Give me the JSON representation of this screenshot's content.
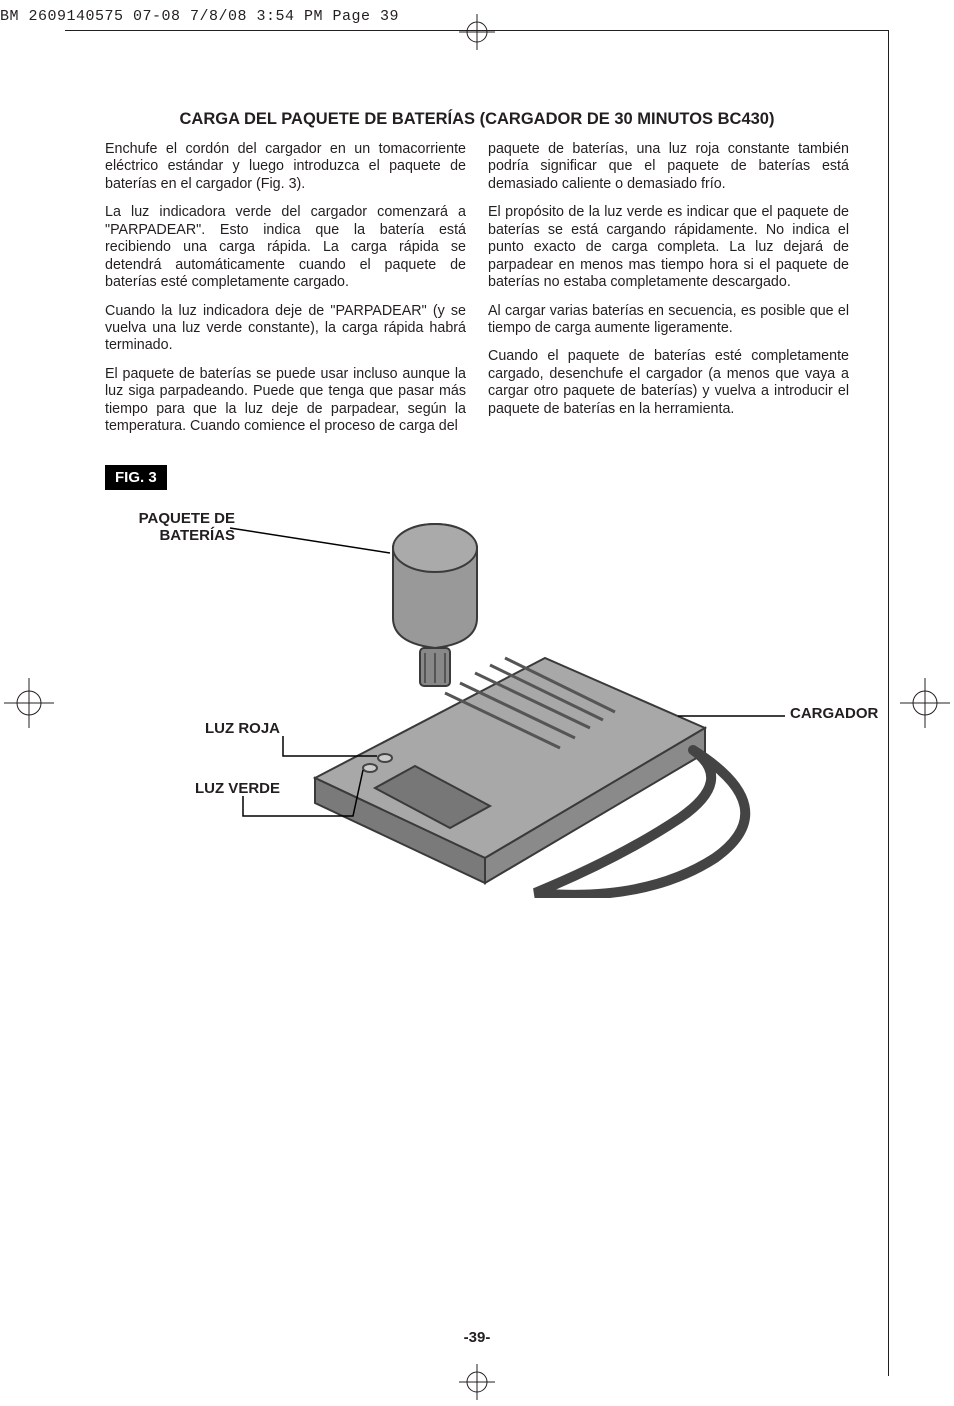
{
  "slug": "BM 2609140575 07-08  7/8/08  3:54 PM  Page 39",
  "title": "CARGA DEL PAQUETE DE BATERÍAS (CARGADOR DE 30 MINUTOS BC430)",
  "left_col": {
    "p1": "Enchufe el cordón del cargador en un tomacorriente eléctrico estándar y luego introduzca el paquete de baterías en el cargador (Fig. 3).",
    "p2": "La luz indicadora verde del cargador comenzará a \"PARPADEAR\".  Esto indica que la batería está recibiendo una carga rápida.  La carga rápida se detendrá automáticamente cuando el paquete de baterías esté completamente cargado.",
    "p3": "Cuando la luz indicadora deje de \"PARPADEAR\" (y se vuelva una luz verde constante), la carga rápida habrá terminado.",
    "p4": "El paquete de baterías se puede usar incluso aunque la luz siga parpadeando.  Puede que tenga que pasar más tiempo para que la luz deje de parpadear, según la temperatura.  Cuando comience el proceso de carga del"
  },
  "right_col": {
    "p1": "paquete de baterías, una luz roja constante también podría significar que el paquete de baterías está demasiado caliente o demasiado frío.",
    "p2": "El propósito de la luz verde es indicar que el paquete de baterías se está cargando rápidamente.  No indica el punto exacto de carga completa.  La luz dejará de parpadear en menos mas tiempo hora si el paquete de baterías no estaba completamente descargado.",
    "p3": "Al cargar varias baterías en secuencia, es posible que el tiempo de carga aumente ligeramente.",
    "p4": "Cuando el paquete de baterías esté completamente cargado, desenchufe el cargador (a menos que vaya a cargar otro paquete de baterías) y vuelva a introducir el paquete de baterías en la herramienta."
  },
  "fig_label": "FIG. 3",
  "callouts": {
    "battery": "PAQUETE DE\nBATERÍAS",
    "charger": "CARGADOR",
    "red": "LUZ ROJA",
    "green": "LUZ VERDE"
  },
  "page_num": "-39-"
}
